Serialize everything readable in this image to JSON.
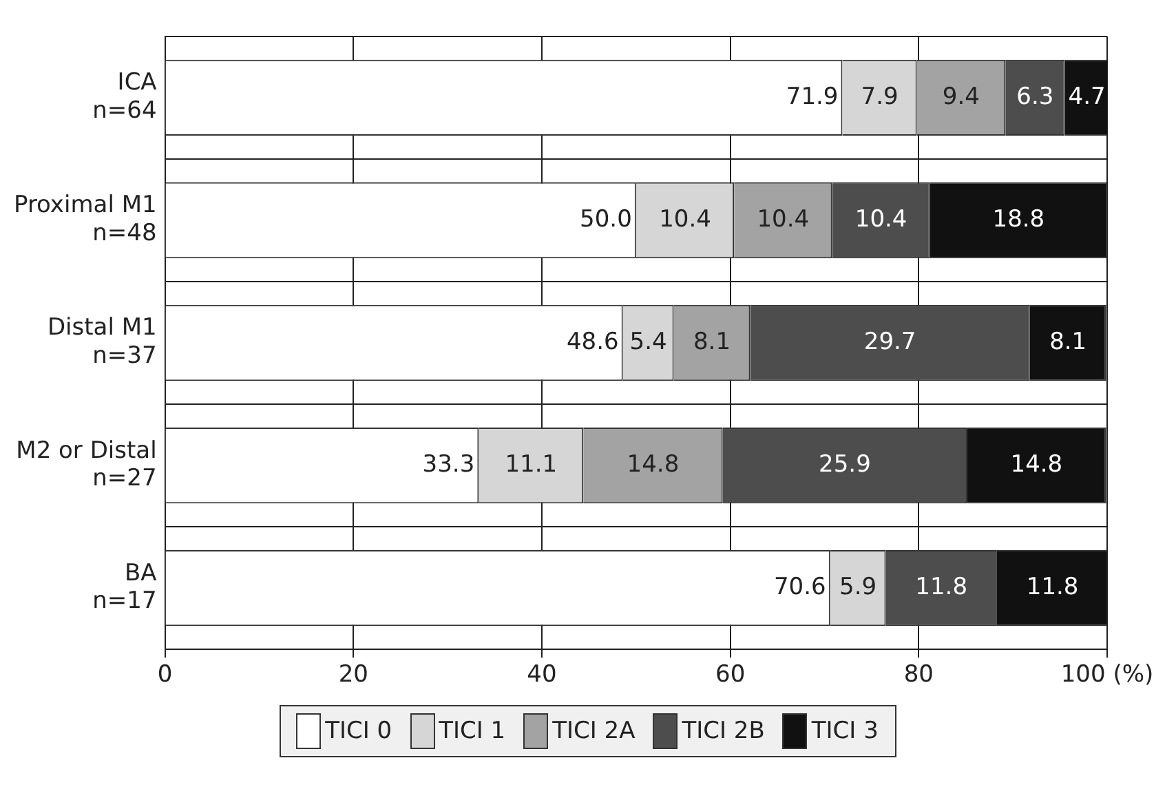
{
  "chart_data": {
    "type": "bar",
    "orientation": "horizontal",
    "stacked": true,
    "categories": [
      "ICA\nn=64",
      "Proximal M1\nn=48",
      "Distal M1\nn=37",
      "M2 or Distal\nn=27",
      "BA\nn=17"
    ],
    "series": [
      {
        "name": "TICI 0",
        "color": "#ffffff",
        "values": [
          71.9,
          50.0,
          48.6,
          33.3,
          70.6
        ],
        "value_labels": [
          "71.9",
          "50.0",
          "48.6",
          "33.3",
          "70.6"
        ]
      },
      {
        "name": "TICI 1",
        "color": "#d6d6d6",
        "values": [
          7.9,
          10.4,
          5.4,
          11.1,
          5.9
        ],
        "value_labels": [
          "7.9",
          "10.4",
          "5.4",
          "11.1",
          "5.9"
        ]
      },
      {
        "name": "TICI 2A",
        "color": "#a3a3a3",
        "values": [
          9.4,
          10.4,
          8.1,
          14.8,
          0
        ],
        "value_labels": [
          "9.4",
          "10.4",
          "8.1",
          "14.8",
          null
        ]
      },
      {
        "name": "TICI 2B",
        "color": "#4d4d4d",
        "values": [
          6.3,
          10.4,
          29.7,
          25.9,
          11.8
        ],
        "value_labels": [
          "6.3",
          "10.4",
          "29.7",
          "25.9",
          "11.8"
        ]
      },
      {
        "name": "TICI 3",
        "color": "#111111",
        "values": [
          4.7,
          18.8,
          8.1,
          14.8,
          11.8
        ],
        "value_labels": [
          "4.7",
          "18.8",
          "8.1",
          "14.8",
          "11.8"
        ]
      }
    ],
    "xlim": [
      0,
      100
    ],
    "xticks": [
      0,
      20,
      40,
      60,
      80,
      {
        "value": 100,
        "label": "100 (%)"
      }
    ],
    "grid": true,
    "legend": "bottom"
  }
}
